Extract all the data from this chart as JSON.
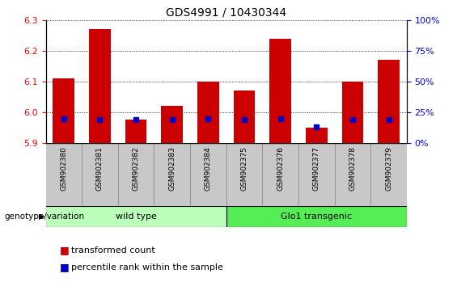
{
  "title": "GDS4991 / 10430344",
  "samples": [
    "GSM902380",
    "GSM902381",
    "GSM902382",
    "GSM902383",
    "GSM902384",
    "GSM902375",
    "GSM902376",
    "GSM902377",
    "GSM902378",
    "GSM902379"
  ],
  "transformed_count": [
    6.11,
    6.27,
    5.975,
    6.02,
    6.1,
    6.07,
    6.24,
    5.95,
    6.1,
    6.17
  ],
  "percentile_rank": [
    20,
    19,
    19,
    19,
    20,
    19,
    20,
    13,
    19,
    19
  ],
  "ylim_left": [
    5.9,
    6.3
  ],
  "ylim_right": [
    0,
    100
  ],
  "yticks_left": [
    5.9,
    6.0,
    6.1,
    6.2,
    6.3
  ],
  "yticks_right": [
    0,
    25,
    50,
    75,
    100
  ],
  "bar_color": "#cc0000",
  "percentile_color": "#0000cc",
  "wild_type_indices": [
    0,
    1,
    2,
    3,
    4
  ],
  "glo1_indices": [
    5,
    6,
    7,
    8,
    9
  ],
  "wild_type_label": "wild type",
  "glo1_label": "Glo1 transgenic",
  "wild_type_color": "#bbffbb",
  "glo1_color": "#55ee55",
  "genotype_label": "genotype/variation",
  "legend_red": "transformed count",
  "legend_blue": "percentile rank within the sample",
  "bar_width": 0.6,
  "base_value": 5.9,
  "grid_color": "#000000",
  "grid_linestyle": "dotted",
  "grid_linewidth": 0.6,
  "label_box_color": "#c8c8c8",
  "label_box_edge": "#888888"
}
